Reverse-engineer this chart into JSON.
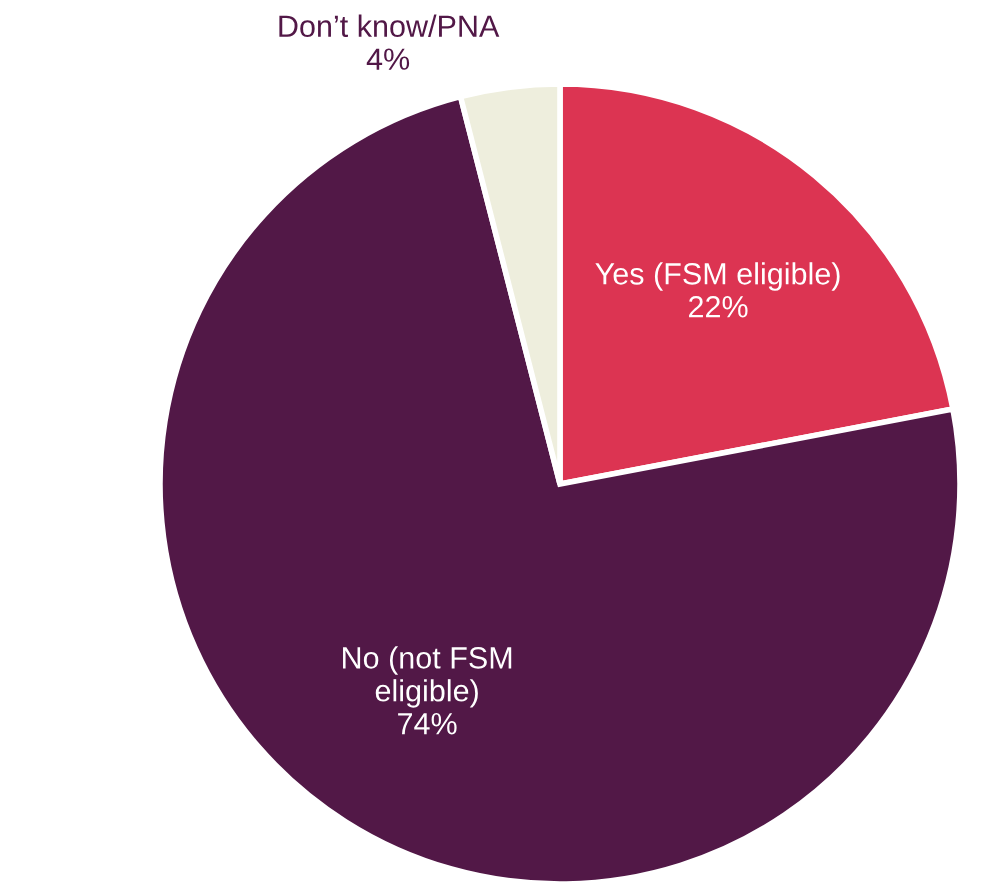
{
  "chart_data": {
    "type": "pie",
    "categories": [
      "Yes (FSM eligible)",
      "No (not FSM\neligible)",
      "Don’t know/PNA"
    ],
    "values": [
      22,
      74,
      4
    ],
    "colors": [
      "#dc3452",
      "#521847",
      "#eeeedd"
    ],
    "value_labels": [
      "22%",
      "74%",
      "4%"
    ],
    "legend": false
  }
}
